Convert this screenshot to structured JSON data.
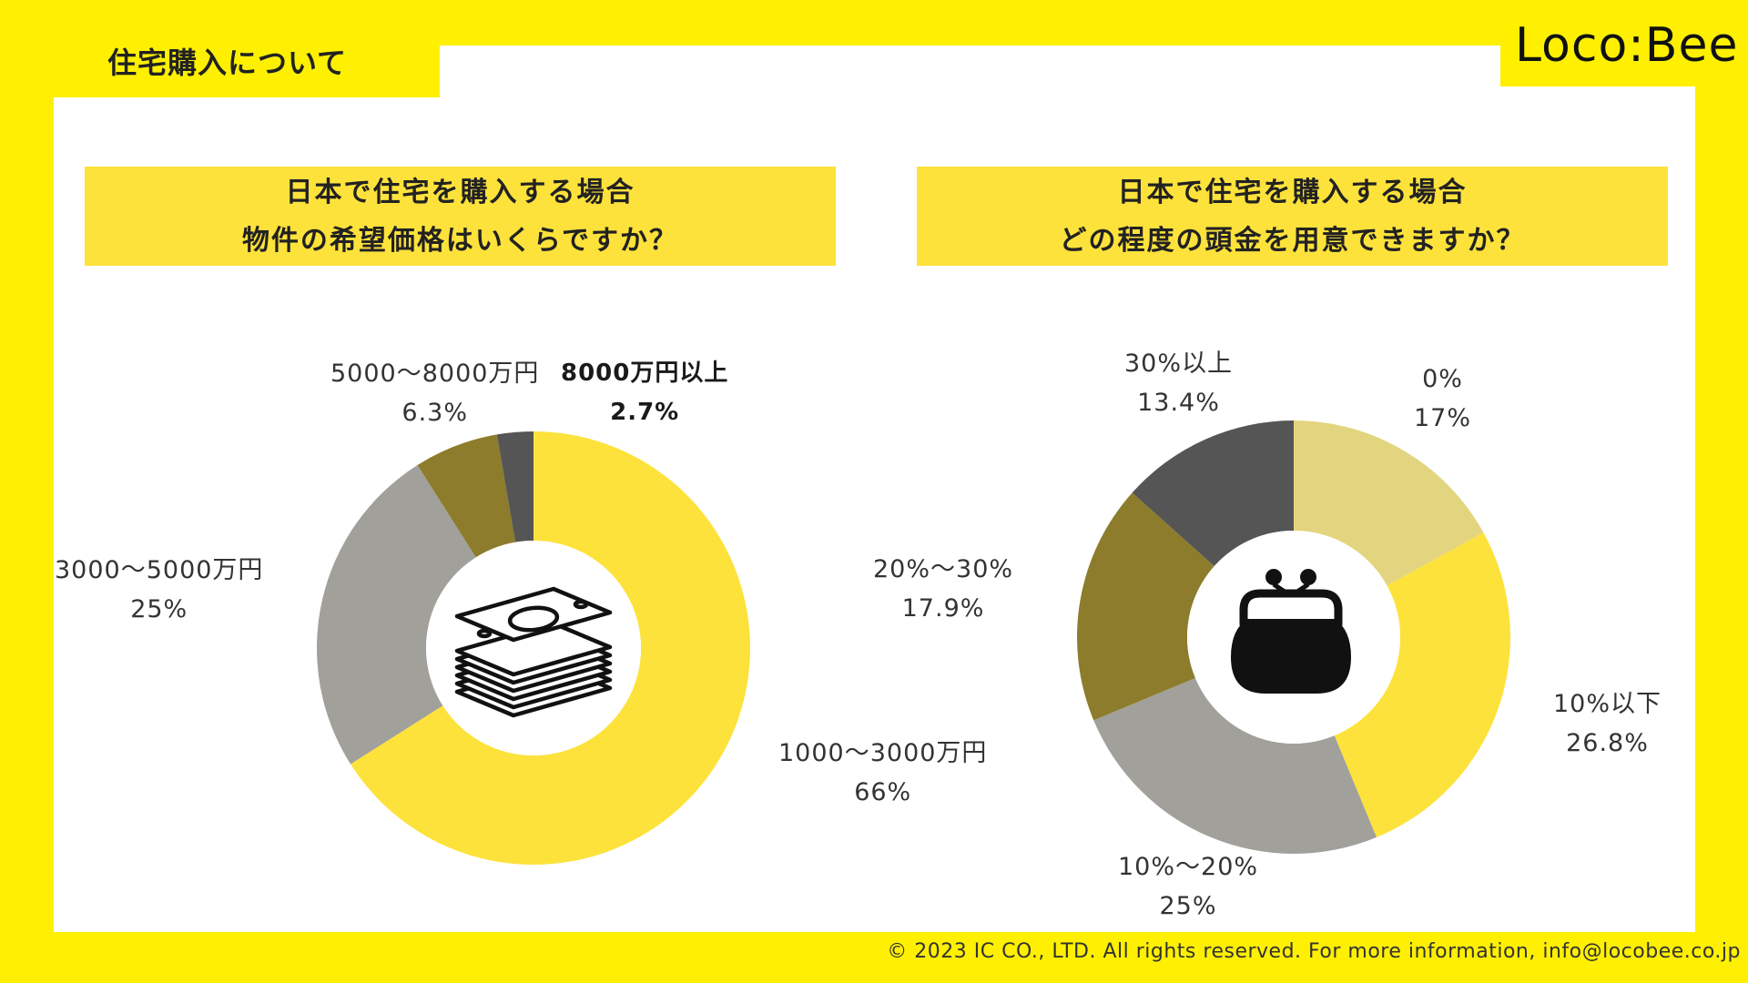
{
  "header": {
    "title": "住宅購入について",
    "logo": "Loco:Bee"
  },
  "footer": {
    "copyright": "© 2023 IC CO., LTD. All rights reserved. For more information, info@locobee.co.jp"
  },
  "chart_data": [
    {
      "type": "pie",
      "title_lines": [
        "日本で住宅を購入する場合",
        "物件の希望価格はいくらですか？"
      ],
      "center_icon": "money-stack-icon",
      "categories": [
        "1000〜3000万円",
        "3000〜5000万円",
        "5000〜8000万円",
        "8000万円以上"
      ],
      "values": [
        66,
        25,
        6.3,
        2.7
      ],
      "value_labels": [
        "66%",
        "25%",
        "6.3%",
        "2.7%"
      ],
      "colors": [
        "#fde23b",
        "#a1a09b",
        "#8c7c2c",
        "#555555"
      ]
    },
    {
      "type": "pie",
      "title_lines": [
        "日本で住宅を購入する場合",
        "どの程度の頭金を用意できますか？"
      ],
      "center_icon": "coin-purse-icon",
      "categories": [
        "0%",
        "10%以下",
        "10%〜20%",
        "20%〜30%",
        "30%以上"
      ],
      "values": [
        17,
        26.8,
        25,
        17.9,
        13.4
      ],
      "value_labels": [
        "17%",
        "26.8%",
        "25%",
        "17.9%",
        "13.4%"
      ],
      "colors": [
        "#e3d57f",
        "#fde23b",
        "#a1a09b",
        "#8c7c2c",
        "#555555"
      ]
    }
  ]
}
